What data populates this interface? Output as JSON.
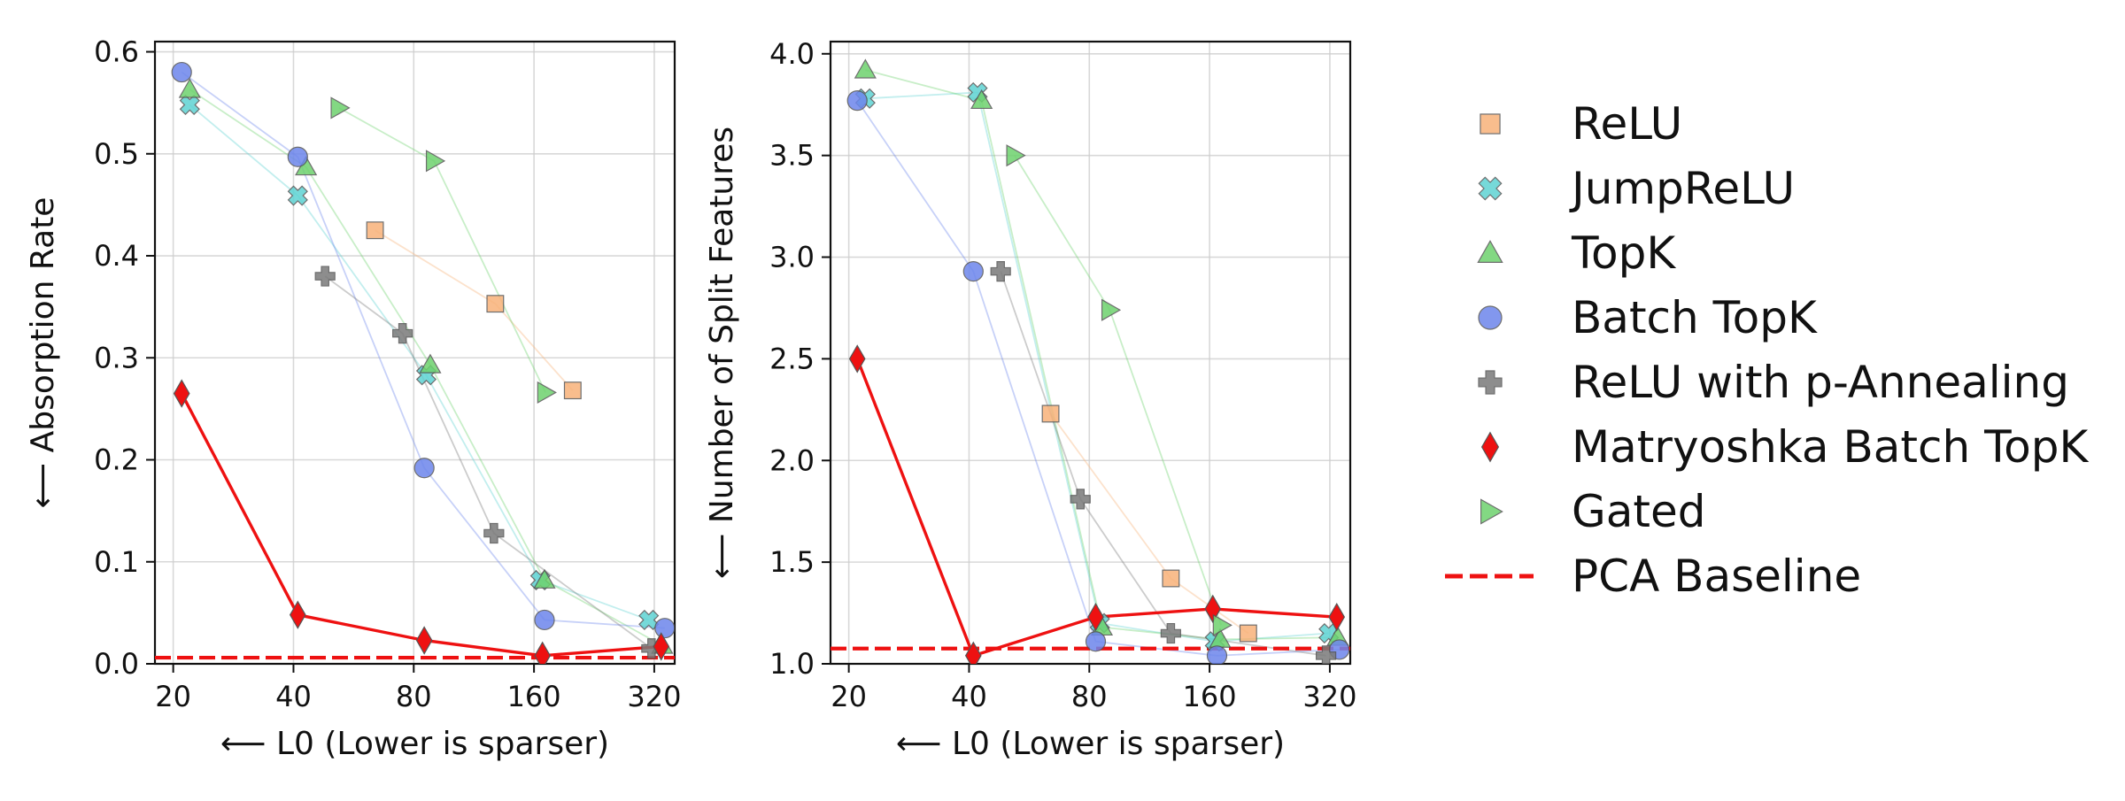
{
  "colors": {
    "ReLU": "#f8b27a",
    "JumpReLU": "#5fd3d3",
    "TopK": "#6ed26e",
    "Batch TopK": "#6d86ec",
    "ReLU with p-Annealing": "#7a7a7a",
    "Matryoshka Batch TopK": "#ee1111",
    "Gated": "#6ed26e",
    "PCA Baseline": "#ee1111"
  },
  "legend": [
    {
      "label": "ReLU",
      "marker": "square"
    },
    {
      "label": "JumpReLU",
      "marker": "xfilled"
    },
    {
      "label": "TopK",
      "marker": "triangle-up"
    },
    {
      "label": "Batch TopK",
      "marker": "circle"
    },
    {
      "label": "ReLU with p-Annealing",
      "marker": "plus"
    },
    {
      "label": "Matryoshka Batch TopK",
      "marker": "diamond"
    },
    {
      "label": "Gated",
      "marker": "triangle-right"
    },
    {
      "label": "PCA Baseline",
      "marker": "dashed-line"
    }
  ],
  "chart_data": [
    {
      "type": "line",
      "xscale": "log2",
      "xlabel": "⟵ L0 (Lower is sparser)",
      "ylabel": "⟵ Absorption Rate",
      "xlim": [
        18,
        360
      ],
      "ylim": [
        0.0,
        0.61
      ],
      "xticks": [
        20,
        40,
        80,
        160,
        320
      ],
      "xtick_labels": [
        "20",
        "40",
        "80",
        "160",
        "320"
      ],
      "yticks": [
        0.0,
        0.1,
        0.2,
        0.3,
        0.4,
        0.5,
        0.6
      ],
      "ytick_labels": [
        "0.0",
        "0.1",
        "0.2",
        "0.3",
        "0.4",
        "0.5",
        "0.6"
      ],
      "grid": true,
      "series": [
        {
          "name": "ReLU",
          "x": [
            64,
            128,
            200
          ],
          "y": [
            0.425,
            0.353,
            0.268
          ]
        },
        {
          "name": "JumpReLU",
          "x": [
            22,
            41,
            86,
            166,
            310
          ],
          "y": [
            0.548,
            0.459,
            0.283,
            0.082,
            0.043
          ]
        },
        {
          "name": "TopK",
          "x": [
            22,
            43,
            88,
            170,
            335
          ],
          "y": [
            0.563,
            0.487,
            0.293,
            0.082,
            0.018
          ]
        },
        {
          "name": "Batch TopK",
          "x": [
            21,
            41,
            85,
            170,
            340
          ],
          "y": [
            0.58,
            0.497,
            0.192,
            0.043,
            0.035
          ]
        },
        {
          "name": "ReLU with p-Annealing",
          "x": [
            48,
            75,
            127,
            315
          ],
          "y": [
            0.38,
            0.324,
            0.128,
            0.015
          ]
        },
        {
          "name": "Matryoshka Batch TopK",
          "x": [
            21,
            41,
            85,
            168,
            333
          ],
          "y": [
            0.265,
            0.048,
            0.023,
            0.008,
            0.017
          ]
        },
        {
          "name": "Gated",
          "x": [
            52,
            90,
            171
          ],
          "y": [
            0.545,
            0.493,
            0.266
          ]
        }
      ],
      "baseline": {
        "name": "PCA Baseline",
        "y": 0.006
      }
    },
    {
      "type": "line",
      "xscale": "log2",
      "xlabel": "⟵ L0 (Lower is sparser)",
      "ylabel": "⟵ Number of Split Features",
      "xlim": [
        18,
        360
      ],
      "ylim": [
        1.0,
        4.06
      ],
      "xticks": [
        20,
        40,
        80,
        160,
        320
      ],
      "xtick_labels": [
        "20",
        "40",
        "80",
        "160",
        "320"
      ],
      "yticks": [
        1.0,
        1.5,
        2.0,
        2.5,
        3.0,
        3.5,
        4.0
      ],
      "ytick_labels": [
        "1.0",
        "1.5",
        "2.0",
        "2.5",
        "3.0",
        "3.5",
        "4.0"
      ],
      "grid": true,
      "series": [
        {
          "name": "ReLU",
          "x": [
            64,
            128,
            200
          ],
          "y": [
            2.23,
            1.42,
            1.15
          ]
        },
        {
          "name": "JumpReLU",
          "x": [
            22,
            42,
            85,
            165,
            318
          ],
          "y": [
            3.78,
            3.81,
            1.2,
            1.11,
            1.15
          ]
        },
        {
          "name": "TopK",
          "x": [
            22,
            43,
            86,
            170,
            335
          ],
          "y": [
            3.92,
            3.77,
            1.18,
            1.12,
            1.13
          ]
        },
        {
          "name": "Batch TopK",
          "x": [
            21,
            41,
            83,
            167,
            338
          ],
          "y": [
            3.77,
            2.93,
            1.11,
            1.04,
            1.07
          ]
        },
        {
          "name": "ReLU with p-Annealing",
          "x": [
            48,
            76,
            128,
            313
          ],
          "y": [
            2.93,
            1.81,
            1.15,
            1.04
          ]
        },
        {
          "name": "Matryoshka Batch TopK",
          "x": [
            21,
            41,
            83,
            163,
            333
          ],
          "y": [
            2.5,
            1.04,
            1.23,
            1.27,
            1.23
          ]
        },
        {
          "name": "Gated",
          "x": [
            52,
            90,
            171
          ],
          "y": [
            3.5,
            2.74,
            1.19
          ]
        }
      ],
      "baseline": {
        "name": "PCA Baseline",
        "y": 1.075
      }
    }
  ]
}
